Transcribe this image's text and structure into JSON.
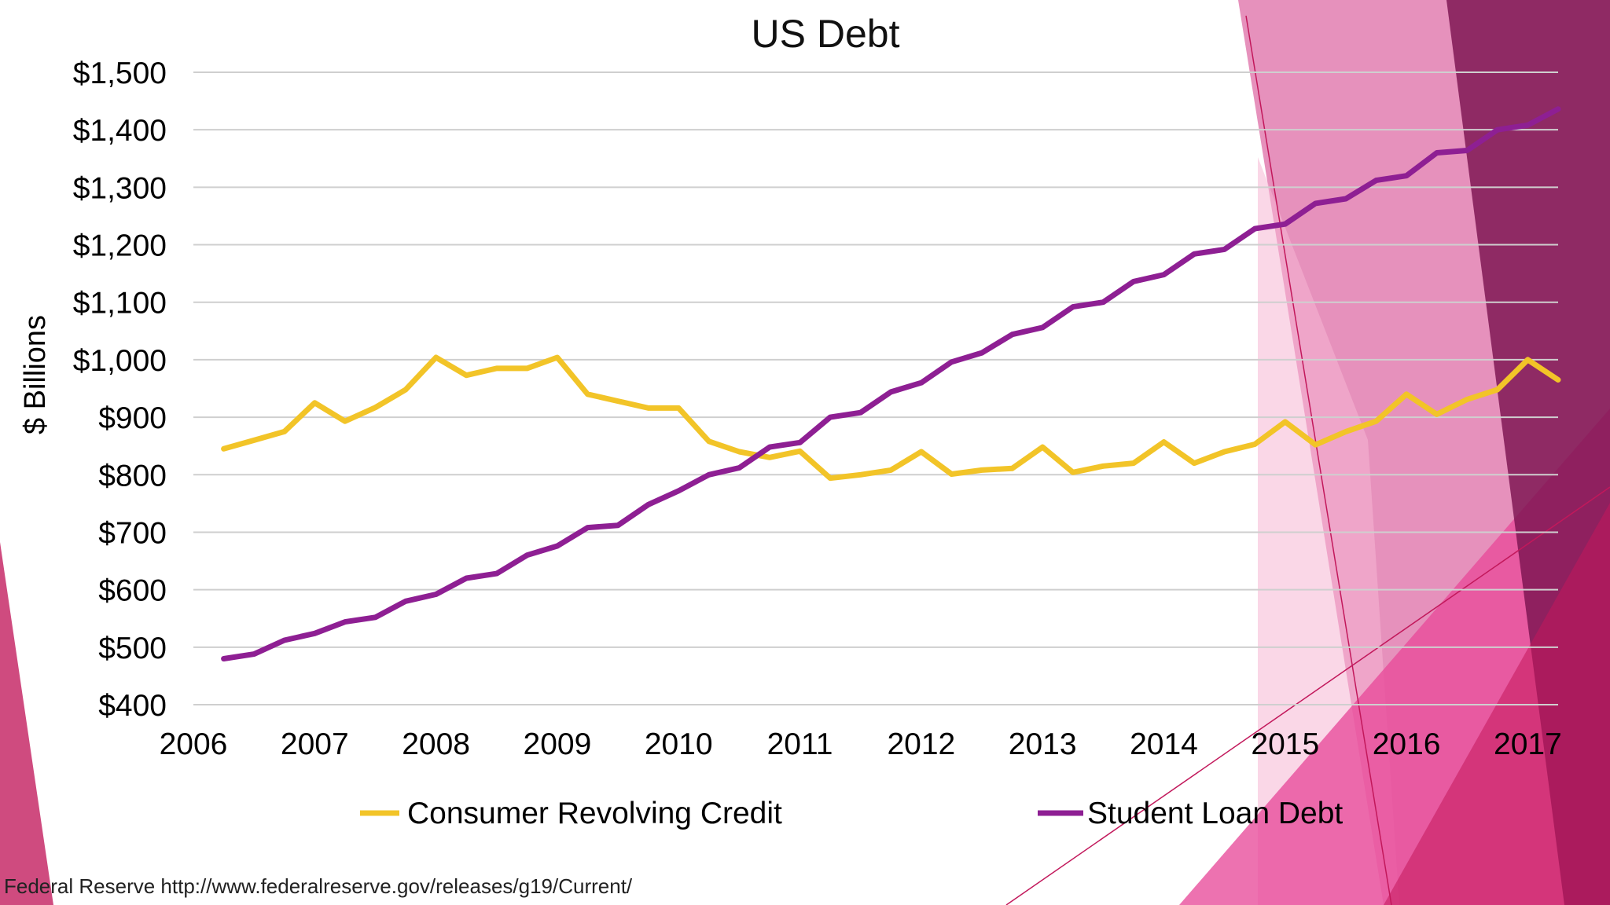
{
  "slide": {
    "source_text": "Federal Reserve http://www.federalreserve.gov/releases/g19/Current/",
    "colors": {
      "accent_magenta": "#c2185b",
      "accent_plum": "#7b1450",
      "accent_pink": "#e84a9a"
    }
  },
  "chart_data": {
    "type": "line",
    "title": "US Debt",
    "xlabel": "",
    "ylabel": "$ Billions",
    "xlim": [
      2006.0,
      2017.25
    ],
    "ylim": [
      400,
      1500
    ],
    "y_ticks": [
      400,
      500,
      600,
      700,
      800,
      900,
      1000,
      1100,
      1200,
      1300,
      1400,
      1500
    ],
    "y_tick_labels": [
      "$400",
      "$500",
      "$600",
      "$700",
      "$800",
      "$900",
      "$1,000",
      "$1,100",
      "$1,200",
      "$1,300",
      "$1,400",
      "$1,500"
    ],
    "x_ticks": [
      2006,
      2007,
      2008,
      2009,
      2010,
      2011,
      2012,
      2013,
      2014,
      2015,
      2016,
      2017
    ],
    "x_tick_labels": [
      "2006",
      "2007",
      "2008",
      "2009",
      "2010",
      "2011",
      "2012",
      "2013",
      "2014",
      "2015",
      "2016",
      "2017"
    ],
    "grid": true,
    "legend_position": "bottom",
    "x": [
      2006.25,
      2006.5,
      2006.75,
      2007.0,
      2007.25,
      2007.5,
      2007.75,
      2008.0,
      2008.25,
      2008.5,
      2008.75,
      2009.0,
      2009.25,
      2009.5,
      2009.75,
      2010.0,
      2010.25,
      2010.5,
      2010.75,
      2011.0,
      2011.25,
      2011.5,
      2011.75,
      2012.0,
      2012.25,
      2012.5,
      2012.75,
      2013.0,
      2013.25,
      2013.5,
      2013.75,
      2014.0,
      2014.25,
      2014.5,
      2014.75,
      2015.0,
      2015.25,
      2015.5,
      2015.75,
      2016.0,
      2016.25,
      2016.5,
      2016.75,
      2017.0,
      2017.25
    ],
    "series": [
      {
        "name": "Consumer Revolving Credit",
        "color": "#f2c428",
        "values": [
          845,
          860,
          875,
          925,
          893,
          917,
          948,
          1004,
          973,
          985,
          985,
          1004,
          940,
          928,
          916,
          916,
          858,
          840,
          830,
          841,
          794,
          800,
          808,
          840,
          801,
          808,
          811,
          848,
          804,
          815,
          820,
          857,
          820,
          840,
          853,
          892,
          852,
          875,
          893,
          940,
          905,
          931,
          948,
          1000,
          965
        ]
      },
      {
        "name": "Student Loan Debt",
        "color": "#8e1f93",
        "values": [
          480,
          488,
          512,
          524,
          544,
          552,
          580,
          592,
          620,
          628,
          660,
          676,
          708,
          712,
          748,
          772,
          800,
          812,
          848,
          856,
          900,
          908,
          944,
          960,
          996,
          1012,
          1044,
          1056,
          1092,
          1100,
          1136,
          1148,
          1184,
          1192,
          1228,
          1236,
          1272,
          1280,
          1312,
          1320,
          1360,
          1364,
          1400,
          1408,
          1436
        ]
      }
    ]
  }
}
